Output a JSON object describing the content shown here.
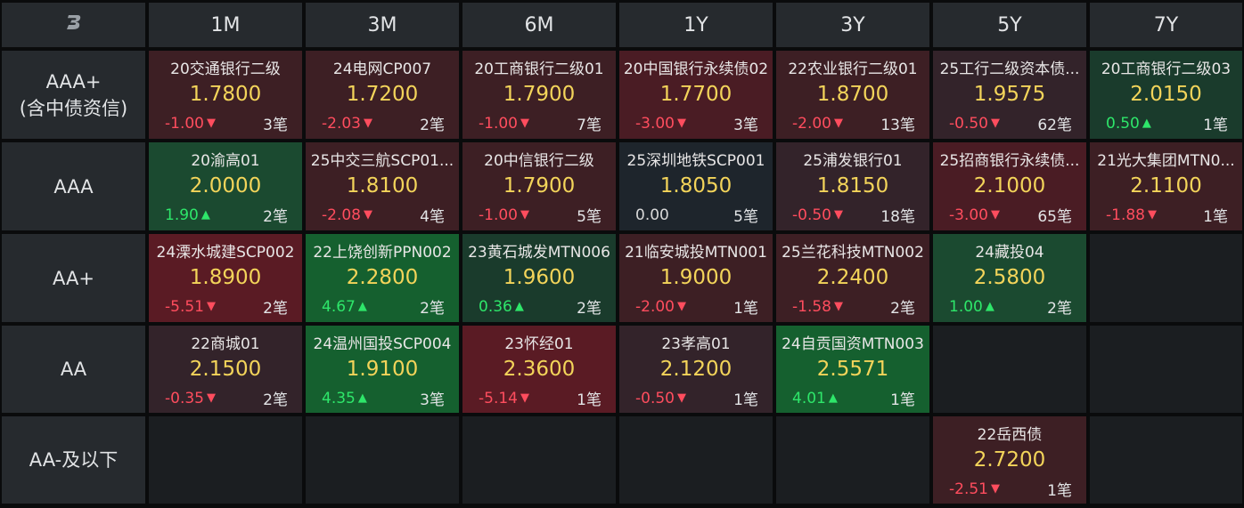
{
  "header": {
    "logo_icon": "brand-logo-icon",
    "columns": [
      "1M",
      "3M",
      "6M",
      "1Y",
      "3Y",
      "5Y",
      "7Y"
    ]
  },
  "rows": [
    {
      "label_line1": "AAA+",
      "label_line2": "(含中债资信)",
      "cells": [
        {
          "name": "20交通银行二级",
          "yield": "1.7800",
          "change": "-1.00",
          "dir": "down",
          "count": "3笔",
          "bg": "#3d1f24"
        },
        {
          "name": "24电网CP007",
          "yield": "1.7200",
          "change": "-2.03",
          "dir": "down",
          "count": "2笔",
          "bg": "#3d1f24"
        },
        {
          "name": "20工商银行二级01",
          "yield": "1.7900",
          "change": "-1.00",
          "dir": "down",
          "count": "7笔",
          "bg": "#3d1f24"
        },
        {
          "name": "20中国银行永续债02",
          "yield": "1.7700",
          "change": "-3.00",
          "dir": "down",
          "count": "3笔",
          "bg": "#4a1c24"
        },
        {
          "name": "22农业银行二级01",
          "yield": "1.8700",
          "change": "-2.00",
          "dir": "down",
          "count": "13笔",
          "bg": "#3d1f24"
        },
        {
          "name": "25工行二级资本债...",
          "yield": "1.9575",
          "change": "-0.50",
          "dir": "down",
          "count": "62笔",
          "bg": "#33232a"
        },
        {
          "name": "20工商银行二级03",
          "yield": "2.0150",
          "change": "0.50",
          "dir": "up",
          "count": "1笔",
          "bg": "#1a3b2c"
        }
      ]
    },
    {
      "label_line1": "AAA",
      "label_line2": "",
      "cells": [
        {
          "name": "20渝高01",
          "yield": "2.0000",
          "change": "1.90",
          "dir": "up",
          "count": "2笔",
          "bg": "#1b4a30"
        },
        {
          "name": "25中交三航SCP01...",
          "yield": "1.8100",
          "change": "-2.08",
          "dir": "down",
          "count": "4笔",
          "bg": "#3d1f24"
        },
        {
          "name": "20中信银行二级",
          "yield": "1.7900",
          "change": "-1.00",
          "dir": "down",
          "count": "5笔",
          "bg": "#3d1f24"
        },
        {
          "name": "25深圳地铁SCP001",
          "yield": "1.8050",
          "change": "0.00",
          "dir": "flat",
          "count": "5笔",
          "bg": "#1e252c"
        },
        {
          "name": "25浦发银行01",
          "yield": "1.8150",
          "change": "-0.50",
          "dir": "down",
          "count": "18笔",
          "bg": "#33232a"
        },
        {
          "name": "25招商银行永续债...",
          "yield": "2.1000",
          "change": "-3.00",
          "dir": "down",
          "count": "65笔",
          "bg": "#4a1c24"
        },
        {
          "name": "21光大集团MTN0...",
          "yield": "2.1100",
          "change": "-1.88",
          "dir": "down",
          "count": "1笔",
          "bg": "#3d1f24"
        }
      ]
    },
    {
      "label_line1": "AA+",
      "label_line2": "",
      "cells": [
        {
          "name": "24溧水城建SCP002",
          "yield": "1.8900",
          "change": "-5.51",
          "dir": "down",
          "count": "2笔",
          "bg": "#5a1b24"
        },
        {
          "name": "22上饶创新PPN002",
          "yield": "2.2800",
          "change": "4.67",
          "dir": "up",
          "count": "2笔",
          "bg": "#15602f"
        },
        {
          "name": "23黄石城发MTN006",
          "yield": "1.9600",
          "change": "0.36",
          "dir": "up",
          "count": "2笔",
          "bg": "#1a3b2c"
        },
        {
          "name": "21临安城投MTN001",
          "yield": "1.9000",
          "change": "-2.00",
          "dir": "down",
          "count": "1笔",
          "bg": "#3d1f24"
        },
        {
          "name": "25兰花科技MTN002",
          "yield": "2.2400",
          "change": "-1.58",
          "dir": "down",
          "count": "2笔",
          "bg": "#3d1f24"
        },
        {
          "name": "24藏投04",
          "yield": "2.5800",
          "change": "1.00",
          "dir": "up",
          "count": "2笔",
          "bg": "#1b4a30"
        },
        null
      ]
    },
    {
      "label_line1": "AA",
      "label_line2": "",
      "cells": [
        {
          "name": "22商城01",
          "yield": "2.1500",
          "change": "-0.35",
          "dir": "down",
          "count": "2笔",
          "bg": "#33232a"
        },
        {
          "name": "24温州国投SCP004",
          "yield": "1.9100",
          "change": "4.35",
          "dir": "up",
          "count": "3笔",
          "bg": "#15602f"
        },
        {
          "name": "23怀经01",
          "yield": "2.3600",
          "change": "-5.14",
          "dir": "down",
          "count": "1笔",
          "bg": "#5a1b24"
        },
        {
          "name": "23孝高01",
          "yield": "2.1200",
          "change": "-0.50",
          "dir": "down",
          "count": "1笔",
          "bg": "#33232a"
        },
        {
          "name": "24自贡国资MTN003",
          "yield": "2.5571",
          "change": "4.01",
          "dir": "up",
          "count": "1笔",
          "bg": "#15602f"
        },
        null,
        null
      ]
    },
    {
      "label_line1": "AA-及以下",
      "label_line2": "",
      "cells": [
        null,
        null,
        null,
        null,
        null,
        {
          "name": "22岳西债",
          "yield": "2.7200",
          "change": "-2.51",
          "dir": "down",
          "count": "1笔",
          "bg": "#3d1f24"
        },
        null
      ]
    }
  ]
}
